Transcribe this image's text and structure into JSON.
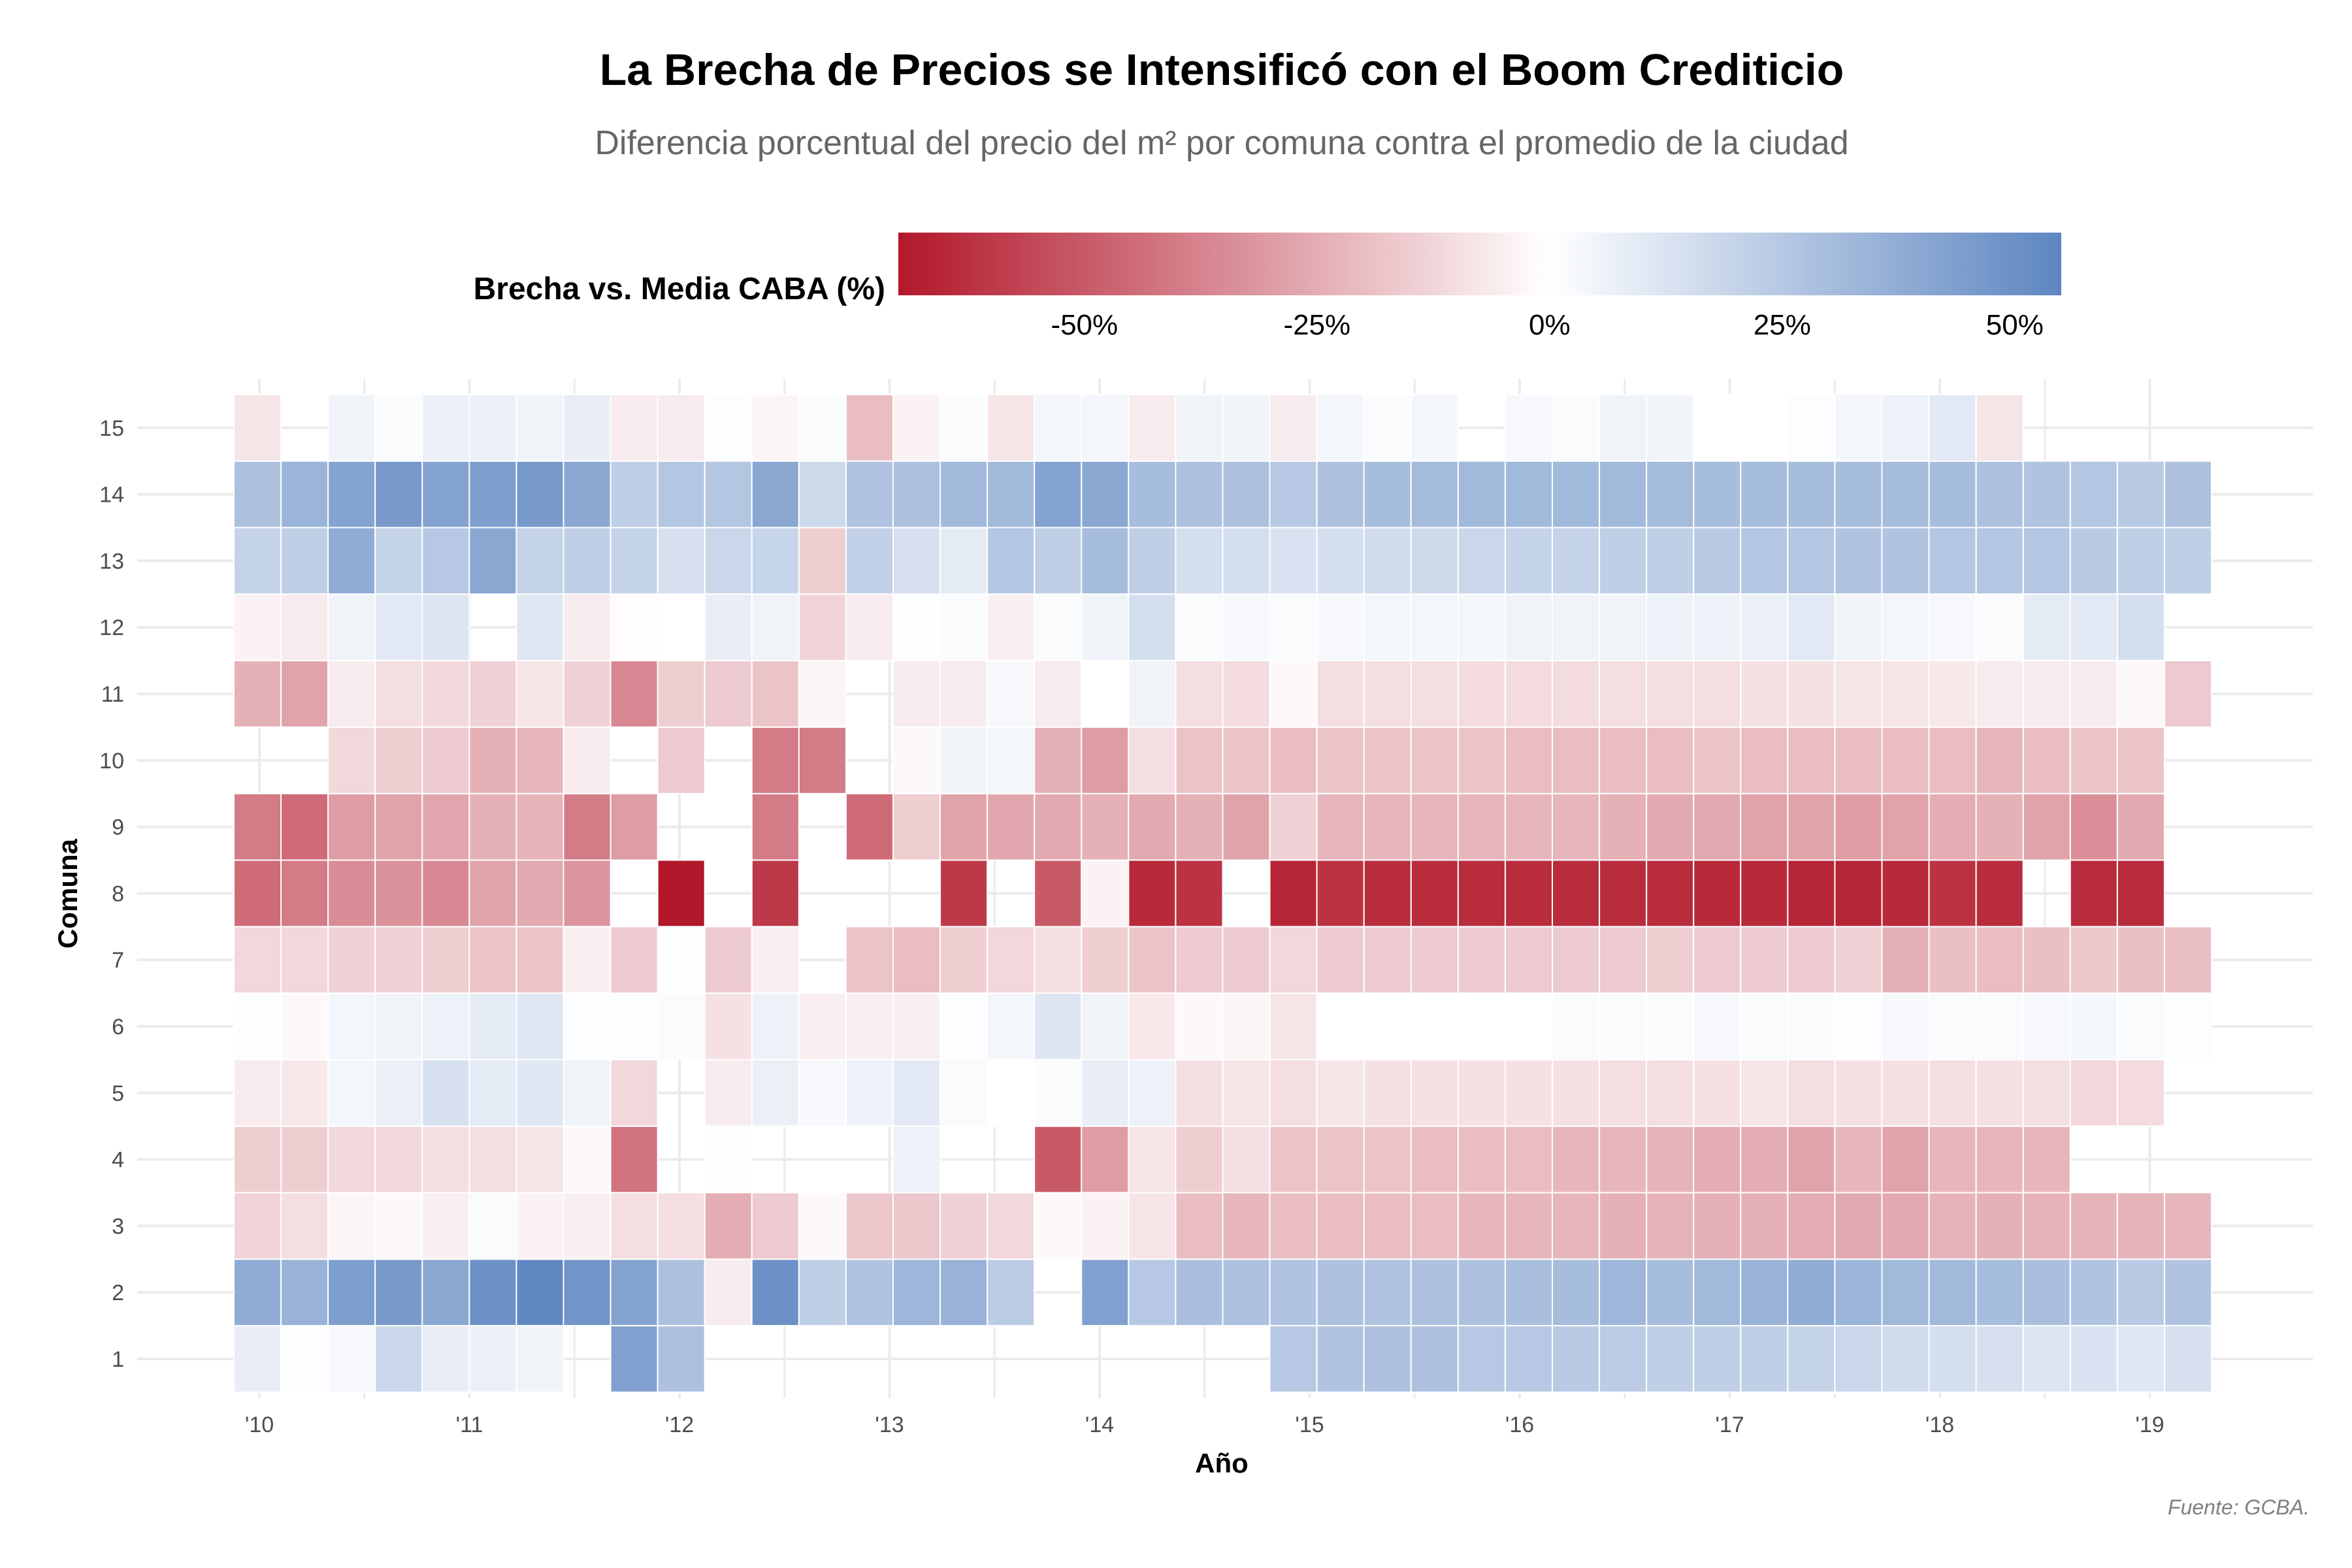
{
  "chart_data": {
    "type": "heatmap",
    "title": "La Brecha de Precios se Intensificó con el Boom Crediticio",
    "subtitle": "Diferencia porcentual del precio del m² por comuna contra el promedio de la ciudad",
    "xlabel": "Año",
    "ylabel": "Comuna",
    "caption": "Fuente: GCBA.",
    "legend": {
      "title": "Brecha vs. Media CABA (%)",
      "position": "top",
      "range": [
        -70,
        55
      ],
      "low_color": "#b2182b",
      "mid_color": "#ffffff",
      "high_color": "#5e86c1",
      "ticks": [
        {
          "value": -50,
          "label": "-50%"
        },
        {
          "value": -25,
          "label": "-25%"
        },
        {
          "value": 0,
          "label": "0%"
        },
        {
          "value": 25,
          "label": "25%"
        },
        {
          "value": 50,
          "label": "50%"
        }
      ]
    },
    "x_ticks": [
      "'10",
      "'11",
      "'12",
      "'13",
      "'14",
      "'15",
      "'16",
      "'17",
      "'18",
      "'19"
    ],
    "y_ticks": [
      "1",
      "2",
      "3",
      "4",
      "5",
      "6",
      "7",
      "8",
      "9",
      "10",
      "11",
      "12",
      "13",
      "14",
      "15"
    ],
    "x_range": [
      2009.8,
      2019.45
    ],
    "grid": true,
    "x_start": 2010.0,
    "x_step": 0.25,
    "comunas": [
      1,
      2,
      3,
      4,
      5,
      6,
      7,
      8,
      9,
      10,
      11,
      12,
      13,
      14,
      15
    ],
    "values": [
      [
        8,
        1,
        3,
        18,
        8,
        7,
        5,
        null,
        43,
        28,
        null,
        null,
        null,
        null,
        null,
        null,
        null,
        null,
        null,
        null,
        null,
        null,
        25,
        27,
        28,
        28,
        25,
        25,
        24,
        23,
        22,
        22,
        22,
        20,
        18,
        16,
        15,
        14,
        12,
        13,
        11,
        14
      ],
      [
        38,
        35,
        44,
        46,
        40,
        50,
        54,
        48,
        42,
        28,
        -6,
        50,
        22,
        27,
        33,
        35,
        23,
        null,
        43,
        25,
        29,
        28,
        27,
        28,
        27,
        28,
        28,
        29,
        30,
        33,
        30,
        32,
        35,
        38,
        34,
        32,
        32,
        30,
        29,
        27,
        24,
        27
      ],
      [
        -13,
        -10,
        -3,
        -2,
        -5,
        2,
        -4,
        -5,
        -10,
        -10,
        -25,
        -16,
        -2,
        -17,
        -17,
        -14,
        -12,
        -2,
        -4,
        -8,
        -20,
        -22,
        -20,
        -20,
        -20,
        -20,
        -22,
        -22,
        -22,
        -24,
        -23,
        -24,
        -24,
        -25,
        -26,
        -26,
        -23,
        -24,
        -23,
        -23,
        -23,
        -22
      ],
      [
        -15,
        -15,
        -12,
        -12,
        -10,
        -10,
        -8,
        -2,
        -42,
        null,
        1,
        null,
        null,
        null,
        6,
        null,
        null,
        -50,
        -30,
        -8,
        -15,
        -10,
        -18,
        -18,
        -18,
        -20,
        -20,
        -20,
        -22,
        -22,
        -23,
        -25,
        -25,
        -28,
        -22,
        -28,
        -22,
        -22,
        -22
      ],
      [
        -6,
        -7,
        4,
        7,
        14,
        9,
        11,
        5,
        -12,
        null,
        -6,
        7,
        3,
        6,
        10,
        2,
        0,
        2,
        8,
        6,
        -10,
        -8,
        -10,
        -8,
        -9,
        -9,
        -9,
        -9,
        -9,
        -10,
        -10,
        -9,
        -8,
        -10,
        -9,
        -9,
        -10,
        -9,
        -10,
        -12,
        -11
      ],
      [
        1,
        -2,
        4,
        5,
        6,
        9,
        11,
        1,
        1,
        2,
        -9,
        6,
        -5,
        -5,
        -5,
        1,
        4,
        12,
        5,
        -7,
        -2,
        -3,
        -8,
        0,
        0,
        0,
        0,
        0,
        2,
        2,
        2,
        3,
        2,
        2,
        1,
        3,
        2,
        2,
        3,
        4,
        2,
        1
      ],
      [
        -12,
        -12,
        -14,
        -14,
        -15,
        -18,
        -18,
        -5,
        -16,
        1,
        -16,
        -5,
        null,
        -18,
        -20,
        -15,
        -12,
        -10,
        -15,
        -18,
        -16,
        -16,
        -12,
        -16,
        -16,
        -16,
        -16,
        -16,
        -16,
        -16,
        -15,
        -16,
        -16,
        -16,
        -14,
        -24,
        -19,
        -20,
        -19,
        -17,
        -19,
        -19
      ],
      [
        -45,
        -40,
        -35,
        -33,
        -36,
        -28,
        -26,
        -32,
        null,
        -70,
        null,
        -60,
        null,
        null,
        null,
        -60,
        null,
        -50,
        -4,
        -65,
        -62,
        null,
        -66,
        -62,
        -64,
        -64,
        -64,
        -64,
        -64,
        -64,
        -64,
        -65,
        -65,
        -66,
        -66,
        -65,
        -62,
        -64,
        null,
        -64,
        -64
      ],
      [
        -40,
        -45,
        -30,
        -28,
        -27,
        -24,
        -23,
        -40,
        -30,
        null,
        null,
        -40,
        null,
        -45,
        -15,
        -28,
        -27,
        -26,
        -24,
        -26,
        -24,
        -28,
        -14,
        -22,
        -22,
        -22,
        -22,
        -22,
        -22,
        -24,
        -26,
        -26,
        -28,
        -28,
        -30,
        -28,
        -25,
        -24,
        -28,
        -34,
        -26
      ],
      [
        null,
        null,
        -12,
        -15,
        -16,
        -24,
        -22,
        -6,
        null,
        -16,
        null,
        -40,
        -40,
        null,
        -2,
        5,
        4,
        -24,
        -30,
        -10,
        -18,
        -18,
        -20,
        -18,
        -18,
        -18,
        -18,
        -20,
        -20,
        -20,
        -20,
        -18,
        -20,
        -20,
        -20,
        -20,
        -20,
        -22,
        -20,
        -18,
        -18
      ],
      [
        -24,
        -28,
        -6,
        -10,
        -12,
        -14,
        -8,
        -14,
        -36,
        -15,
        -16,
        -18,
        -3,
        null,
        -6,
        -6,
        3,
        -6,
        0,
        5,
        -10,
        -11,
        -2,
        -10,
        -10,
        -10,
        -11,
        -11,
        -11,
        -10,
        -10,
        -10,
        -9,
        -9,
        -8,
        -8,
        -7,
        -6,
        -6,
        -6,
        -2,
        -16
      ],
      [
        -4,
        -6,
        5,
        10,
        12,
        null,
        11,
        -6,
        -1,
        0,
        8,
        5,
        -13,
        -6,
        1,
        2,
        -5,
        2,
        5,
        15,
        2,
        3,
        2,
        3,
        4,
        4,
        4,
        5,
        5,
        5,
        6,
        6,
        7,
        10,
        5,
        4,
        3,
        2,
        9,
        10,
        15
      ],
      [
        20,
        22,
        38,
        20,
        25,
        40,
        20,
        22,
        20,
        14,
        18,
        19,
        -15,
        21,
        14,
        9,
        26,
        22,
        30,
        22,
        15,
        15,
        13,
        15,
        16,
        17,
        18,
        20,
        20,
        22,
        22,
        24,
        26,
        26,
        27,
        27,
        26,
        26,
        26,
        24,
        22,
        22
      ],
      [
        28,
        34,
        42,
        46,
        42,
        44,
        46,
        40,
        22,
        26,
        26,
        40,
        17,
        27,
        28,
        32,
        32,
        42,
        40,
        30,
        28,
        28,
        25,
        28,
        30,
        31,
        32,
        32,
        32,
        32,
        31,
        30,
        30,
        30,
        30,
        30,
        30,
        28,
        27,
        26,
        24,
        28
      ],
      [
        -8,
        null,
        5,
        2,
        7,
        7,
        5,
        8,
        -6,
        -6,
        1,
        -3,
        2,
        -20,
        -4,
        2,
        -8,
        4,
        4,
        -6,
        5,
        5,
        -6,
        4,
        2,
        4,
        null,
        3,
        2,
        5,
        5,
        0,
        0,
        1,
        4,
        6,
        10,
        -8
      ]
    ]
  }
}
